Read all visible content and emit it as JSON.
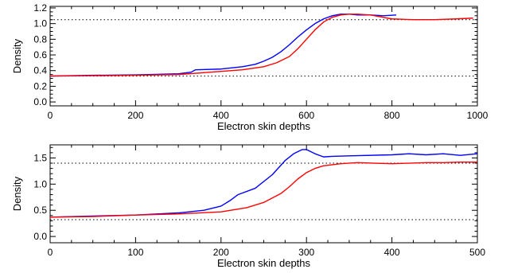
{
  "chart_data": [
    {
      "type": "line",
      "xlabel": "Electron skin depths",
      "ylabel": "Density",
      "xlim": [
        0,
        1000
      ],
      "ylim": [
        -0.05,
        1.22
      ],
      "x_ticks": [
        0,
        200,
        400,
        600,
        800,
        1000
      ],
      "y_ticks": [
        0.0,
        0.2,
        0.4,
        0.6,
        0.8,
        1.0,
        1.2
      ],
      "y_tick_labels": [
        "0.0",
        "0.2",
        "0.4",
        "0.6",
        "0.8",
        "1.0",
        "1.2"
      ],
      "grid": false,
      "reference_lines": [
        1.05,
        0.33
      ],
      "series": [
        {
          "color": "#0000ff",
          "x": [
            0,
            100,
            200,
            300,
            330,
            340,
            400,
            450,
            480,
            500,
            520,
            540,
            560,
            580,
            600,
            620,
            640,
            660,
            680,
            700,
            720,
            750,
            780,
            810
          ],
          "y": [
            0.33,
            0.34,
            0.345,
            0.36,
            0.38,
            0.41,
            0.42,
            0.45,
            0.48,
            0.52,
            0.57,
            0.64,
            0.73,
            0.83,
            0.92,
            1.0,
            1.06,
            1.1,
            1.12,
            1.12,
            1.11,
            1.11,
            1.1,
            1.11
          ]
        },
        {
          "color": "#ff0000",
          "x": [
            0,
            100,
            200,
            300,
            350,
            400,
            450,
            500,
            530,
            560,
            580,
            600,
            620,
            640,
            660,
            680,
            700,
            720,
            750,
            780,
            800,
            850,
            900,
            950,
            990
          ],
          "y": [
            0.33,
            0.335,
            0.34,
            0.35,
            0.37,
            0.39,
            0.41,
            0.45,
            0.5,
            0.58,
            0.68,
            0.8,
            0.92,
            1.02,
            1.08,
            1.11,
            1.12,
            1.12,
            1.11,
            1.08,
            1.06,
            1.05,
            1.05,
            1.06,
            1.07
          ]
        }
      ]
    },
    {
      "type": "line",
      "xlabel": "Electron skin depths",
      "ylabel": "Density",
      "xlim": [
        0,
        500
      ],
      "ylim": [
        -0.12,
        1.75
      ],
      "x_ticks": [
        0,
        100,
        200,
        300,
        400,
        500
      ],
      "y_ticks": [
        0.0,
        0.5,
        1.0,
        1.5
      ],
      "y_tick_labels": [
        "0.0",
        "0.5",
        "1.0",
        "1.5"
      ],
      "grid": false,
      "reference_lines": [
        1.4,
        0.32
      ],
      "series": [
        {
          "color": "#0000ff",
          "x": [
            0,
            50,
            100,
            150,
            180,
            200,
            210,
            220,
            240,
            260,
            275,
            285,
            295,
            300,
            310,
            320,
            330,
            350,
            400,
            420,
            440,
            460,
            480,
            500
          ],
          "y": [
            0.37,
            0.39,
            0.41,
            0.45,
            0.5,
            0.58,
            0.68,
            0.8,
            0.92,
            1.18,
            1.45,
            1.58,
            1.66,
            1.66,
            1.58,
            1.52,
            1.53,
            1.54,
            1.56,
            1.58,
            1.56,
            1.58,
            1.55,
            1.58
          ]
        },
        {
          "color": "#ff0000",
          "x": [
            0,
            50,
            100,
            150,
            200,
            230,
            250,
            270,
            280,
            290,
            300,
            310,
            320,
            340,
            360,
            380,
            400,
            420,
            440,
            460,
            480,
            500
          ],
          "y": [
            0.37,
            0.38,
            0.41,
            0.43,
            0.47,
            0.55,
            0.65,
            0.82,
            0.95,
            1.1,
            1.22,
            1.3,
            1.35,
            1.39,
            1.41,
            1.4,
            1.39,
            1.4,
            1.41,
            1.41,
            1.42,
            1.42
          ]
        }
      ]
    }
  ]
}
